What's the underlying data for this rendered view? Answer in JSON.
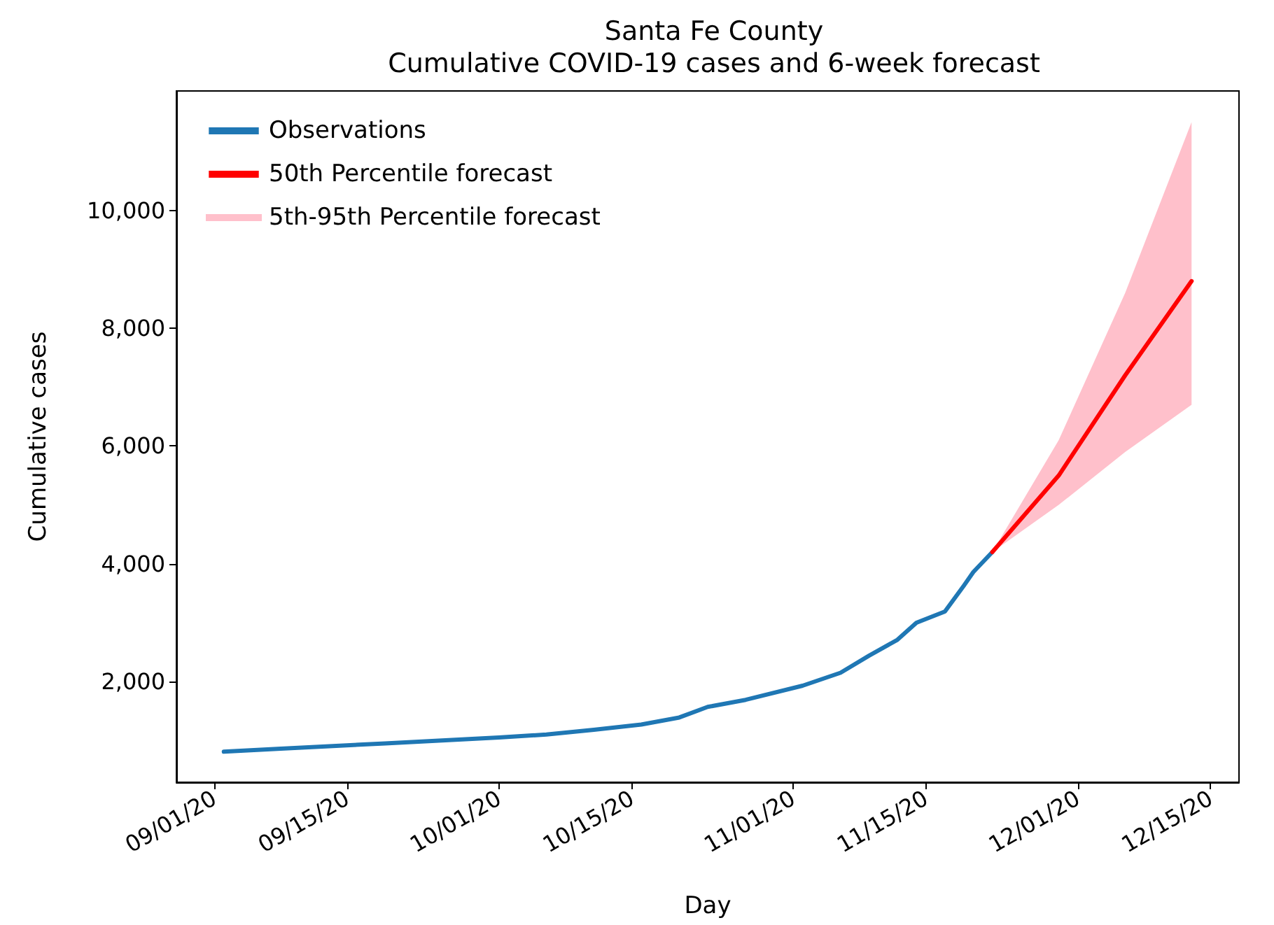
{
  "chart_data": {
    "type": "line",
    "title": "Santa Fe County",
    "subtitle": "Cumulative COVID-19 cases and 6-week forecast",
    "xlabel": "Day",
    "ylabel": "Cumulative cases",
    "xlim": [
      "--08-28",
      "--12-18"
    ],
    "xticks": [
      {
        "value": "--09-01",
        "label": "09/01/20"
      },
      {
        "value": "--09-15",
        "label": "09/15/20"
      },
      {
        "value": "--10-01",
        "label": "10/01/20"
      },
      {
        "value": "--10-15",
        "label": "10/15/20"
      },
      {
        "value": "--11-01",
        "label": "11/01/20"
      },
      {
        "value": "--11-15",
        "label": "11/15/20"
      },
      {
        "value": "--12-01",
        "label": "12/01/20"
      },
      {
        "value": "--12-15",
        "label": "12/15/20"
      }
    ],
    "ylim": [
      290,
      12030
    ],
    "yticks": [
      {
        "value": 2000,
        "label": "2,000"
      },
      {
        "value": 4000,
        "label": "4,000"
      },
      {
        "value": 6000,
        "label": "6,000"
      },
      {
        "value": 8000,
        "label": "8,000"
      },
      {
        "value": 10000,
        "label": "10,000"
      }
    ],
    "grid": false,
    "legend": "top left",
    "marker": "none",
    "line_style": "solid",
    "series": [
      {
        "name": "Observations",
        "color": "#1f77b4",
        "x": [
          "--09-02",
          "--09-08",
          "--09-19",
          "--10-01",
          "--10-06",
          "--10-11",
          "--10-16",
          "--10-20",
          "--10-23",
          "--10-27",
          "--11-02",
          "--11-06",
          "--11-09",
          "--11-12",
          "--11-14",
          "--11-17",
          "--11-19",
          "--11-20",
          "--11-22"
        ],
        "values": [
          810,
          860,
          950,
          1050,
          1100,
          1180,
          1270,
          1390,
          1570,
          1690,
          1930,
          2150,
          2440,
          2710,
          3000,
          3190,
          3630,
          3860,
          4200
        ]
      },
      {
        "name": "50th Percentile forecast",
        "color": "#ff0000",
        "x": [
          "--11-22",
          "--11-29",
          "--12-06",
          "--12-13"
        ],
        "values": [
          4200,
          5500,
          7200,
          8800
        ]
      },
      {
        "name": "5th-95th Percentile forecast",
        "type": "area",
        "color": "#ffc0cb",
        "x": [
          "--11-22",
          "--11-29",
          "--12-06",
          "--12-13"
        ],
        "values": [
          null,
          null,
          null,
          null
        ],
        "lower": [
          4200,
          5000,
          5900,
          6700
        ],
        "upper": [
          4200,
          6100,
          8600,
          11500
        ]
      }
    ]
  }
}
